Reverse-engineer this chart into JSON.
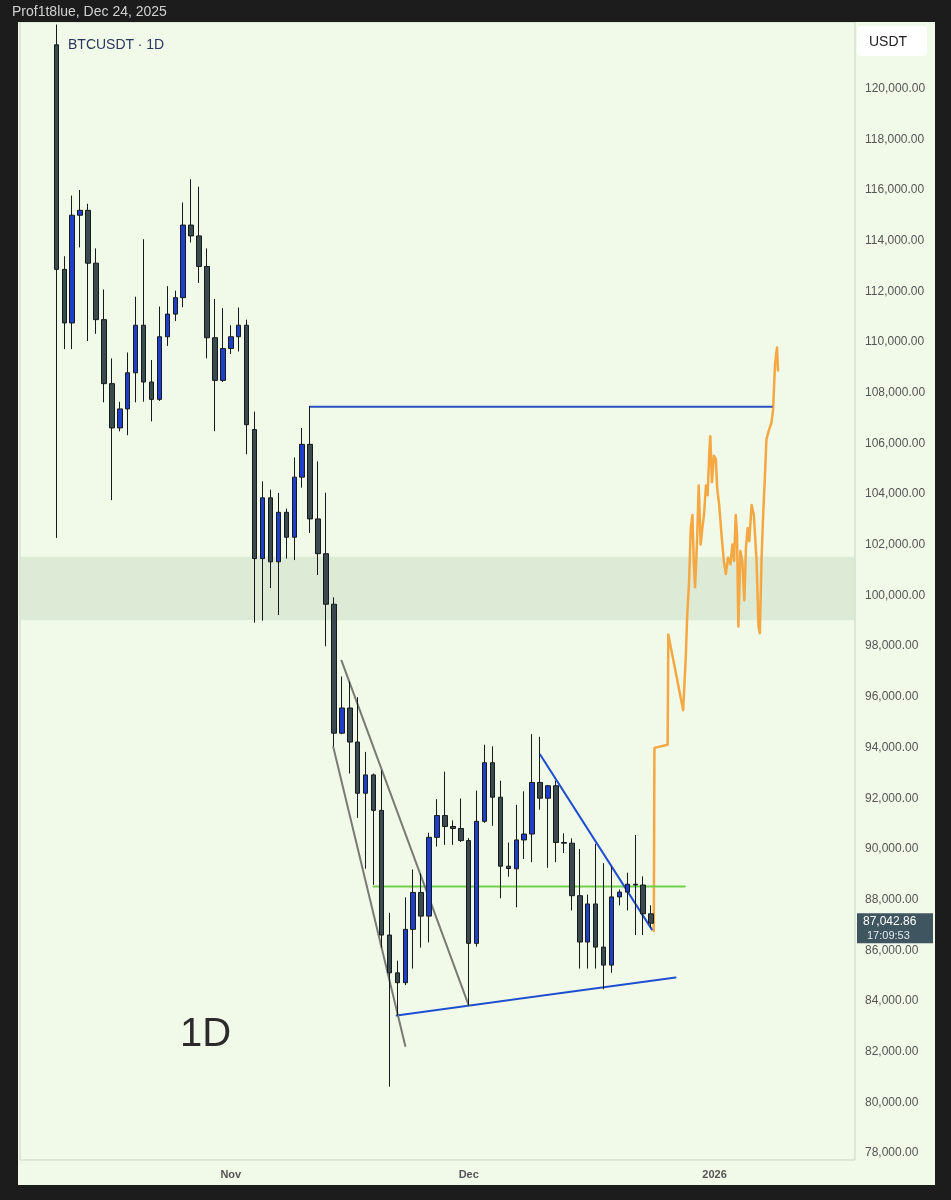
{
  "chart_data": {
    "type": "candlestick",
    "title": "BTCUSDT · 1D",
    "subtitle": "Prof1t8lue, Dec 24, 2025",
    "ylabel": "USDT",
    "annotations": [
      "1D",
      "87,042.86",
      "17:09:53"
    ],
    "xlim": [
      "2025-10-05T10:00",
      "2026-01-18T17:00"
    ],
    "xticks": [
      {
        "value": "2025-11-01",
        "label": "Nov"
      },
      {
        "value": "2025-12-01",
        "label": "Dec"
      },
      {
        "value": "2026-01-01",
        "label": "2026"
      }
    ],
    "ylim": [
      77700,
      122600
    ],
    "yticks": [
      {
        "value": 78000,
        "label": "78,000.00"
      },
      {
        "value": 80000,
        "label": "80,000.00"
      },
      {
        "value": 82000,
        "label": "82,000.00"
      },
      {
        "value": 84000,
        "label": "84,000.00"
      },
      {
        "value": 86000,
        "label": "86,000.00"
      },
      {
        "value": 88000,
        "label": "88,000.00"
      },
      {
        "value": 90000,
        "label": "90,000.00"
      },
      {
        "value": 92000,
        "label": "92,000.00"
      },
      {
        "value": 94000,
        "label": "94,000.00"
      },
      {
        "value": 96000,
        "label": "96,000.00"
      },
      {
        "value": 98000,
        "label": "98,000.00"
      },
      {
        "value": 100000,
        "label": "100,000.00"
      },
      {
        "value": 102000,
        "label": "102,000.00"
      },
      {
        "value": 104000,
        "label": "104,000.00"
      },
      {
        "value": 106000,
        "label": "106,000.00"
      },
      {
        "value": 108000,
        "label": "108,000.00"
      },
      {
        "value": 110000,
        "label": "110,000.00"
      },
      {
        "value": 112000,
        "label": "112,000.00"
      },
      {
        "value": 114000,
        "label": "114,000.00"
      },
      {
        "value": 116000,
        "label": "116,000.00"
      },
      {
        "value": 118000,
        "label": "118,000.00"
      },
      {
        "value": 120000,
        "label": "120,000.00"
      }
    ],
    "bands": [
      {
        "axis": "y",
        "from": 99000,
        "to": 101500,
        "color": "#d8e6d0"
      }
    ],
    "series": [
      {
        "type": "candlestick",
        "x": [
          "2025-10-10",
          "2025-10-11",
          "2025-10-12",
          "2025-10-13",
          "2025-10-14",
          "2025-10-15",
          "2025-10-16",
          "2025-10-17",
          "2025-10-18",
          "2025-10-19",
          "2025-10-20",
          "2025-10-21",
          "2025-10-22",
          "2025-10-23",
          "2025-10-24",
          "2025-10-25",
          "2025-10-26",
          "2025-10-27",
          "2025-10-28",
          "2025-10-29",
          "2025-10-30",
          "2025-10-31",
          "2025-11-01",
          "2025-11-02",
          "2025-11-03",
          "2025-11-04",
          "2025-11-05",
          "2025-11-06",
          "2025-11-07",
          "2025-11-08",
          "2025-11-09",
          "2025-11-10",
          "2025-11-11",
          "2025-11-12",
          "2025-11-13",
          "2025-11-14",
          "2025-11-15",
          "2025-11-16",
          "2025-11-17",
          "2025-11-18",
          "2025-11-19",
          "2025-11-20",
          "2025-11-21",
          "2025-11-22",
          "2025-11-23",
          "2025-11-24",
          "2025-11-25",
          "2025-11-26",
          "2025-11-27",
          "2025-11-28",
          "2025-11-29",
          "2025-11-30",
          "2025-12-01",
          "2025-12-02",
          "2025-12-03",
          "2025-12-04",
          "2025-12-05",
          "2025-12-06",
          "2025-12-07",
          "2025-12-08",
          "2025-12-09",
          "2025-12-10",
          "2025-12-11",
          "2025-12-12",
          "2025-12-13",
          "2025-12-14",
          "2025-12-15",
          "2025-12-16",
          "2025-12-17",
          "2025-12-18",
          "2025-12-19",
          "2025-12-20",
          "2025-12-21",
          "2025-12-22",
          "2025-12-23",
          "2025-12-24"
        ],
        "ohlc": [
          [
            121700,
            122500,
            102245,
            112840
          ],
          [
            112840,
            113356,
            109693,
            110726
          ],
          [
            110726,
            115753,
            109693,
            114976
          ],
          [
            114976,
            115972,
            113706,
            115170
          ],
          [
            115170,
            115427,
            110015,
            113084
          ],
          [
            113084,
            113667,
            110298,
            110857
          ],
          [
            110857,
            112047,
            107594,
            108332
          ],
          [
            108332,
            109328,
            103733,
            106584
          ],
          [
            106584,
            107618,
            106450,
            107334
          ],
          [
            107334,
            109561,
            106298,
            108760
          ],
          [
            108760,
            111763,
            107594,
            110637
          ],
          [
            110637,
            114029,
            107618,
            108396
          ],
          [
            108396,
            109263,
            106841,
            107710
          ],
          [
            107710,
            111374,
            107650,
            110182
          ],
          [
            110182,
            112177,
            109820,
            111076
          ],
          [
            111076,
            112000,
            110800,
            111724
          ],
          [
            111724,
            115481,
            111347,
            114588
          ],
          [
            114588,
            116398,
            113900,
            114160
          ],
          [
            114160,
            116103,
            112307,
            112956
          ],
          [
            112956,
            113667,
            109328,
            110143
          ],
          [
            110143,
            111673,
            106454,
            108460
          ],
          [
            108460,
            111309,
            108400,
            109717
          ],
          [
            109717,
            110637,
            109500,
            110182
          ],
          [
            110182,
            111335,
            109600,
            110637
          ],
          [
            110637,
            110857,
            105544,
            106712
          ],
          [
            106518,
            107229,
            98903,
            101428
          ],
          [
            101428,
            104473,
            98980,
            103826
          ],
          [
            103826,
            104148,
            100263,
            101300
          ],
          [
            101300,
            104020,
            99200,
            103255
          ],
          [
            103255,
            103400,
            101428,
            102271
          ],
          [
            102271,
            105419,
            101370,
            104642
          ],
          [
            104642,
            106584,
            104226,
            105936
          ],
          [
            105936,
            107451,
            102440,
            102994
          ],
          [
            102994,
            105263,
            100780,
            101622
          ],
          [
            101622,
            104030,
            97969,
            99628
          ],
          [
            99628,
            99900,
            94020,
            94540
          ],
          [
            94540,
            96777,
            94500,
            95534
          ],
          [
            95534,
            96570,
            92947,
            94190
          ],
          [
            94190,
            95962,
            91199,
            92170
          ],
          [
            92170,
            93801,
            89190,
            92894
          ],
          [
            92894,
            92950,
            88555,
            91494
          ],
          [
            91494,
            93075,
            86081,
            86575
          ],
          [
            86575,
            87453,
            80593,
            85084
          ],
          [
            85084,
            85564,
            83400,
            84696
          ],
          [
            84696,
            88063,
            84600,
            86800
          ],
          [
            86800,
            89164,
            85253,
            88257
          ],
          [
            88257,
            89000,
            86081,
            87323
          ],
          [
            87323,
            90612,
            86287,
            90431
          ],
          [
            90431,
            91938,
            90069,
            91290
          ],
          [
            91290,
            93024,
            90133,
            90859
          ],
          [
            90859,
            91100,
            90133,
            90780
          ],
          [
            90780,
            91963,
            90250,
            90302
          ],
          [
            90302,
            90400,
            83790,
            86248
          ],
          [
            86248,
            92273,
            86120,
            91063
          ],
          [
            91063,
            94087,
            91000,
            93375
          ],
          [
            93375,
            94022,
            90885,
            92014
          ],
          [
            92014,
            92662,
            88025,
            89293
          ],
          [
            89293,
            90227,
            88878,
            89200
          ],
          [
            89190,
            91711,
            87673,
            90328
          ],
          [
            90328,
            92247,
            89579,
            90561
          ],
          [
            90561,
            94503,
            89450,
            92597
          ],
          [
            92597,
            94400,
            91520,
            91975
          ],
          [
            91975,
            92500,
            89228,
            92466
          ],
          [
            92466,
            92662,
            89450,
            90227
          ],
          [
            90227,
            90589,
            89811,
            90200
          ],
          [
            90200,
            90393,
            87545,
            88128
          ],
          [
            88128,
            89966,
            85253,
            86300
          ],
          [
            86300,
            88171,
            85253,
            87802
          ],
          [
            87802,
            90175,
            85253,
            86100
          ],
          [
            86100,
            89411,
            84437,
            85390
          ],
          [
            85390,
            89280,
            85084,
            88080
          ],
          [
            88080,
            88374,
            87749,
            88270
          ],
          [
            88270,
            89036,
            87545,
            88581
          ],
          [
            88581,
            90522,
            86575,
            88550
          ],
          [
            88550,
            88891,
            86575,
            87414
          ],
          [
            87414,
            87749,
            86867,
            87042.86
          ]
        ],
        "colors": [
          "#3b4a4e",
          "#3b4a4e",
          "#1f3fc9",
          "#1f3fc9",
          "#3b4a4e",
          "#3b4a4e",
          "#3b4a4e",
          "#3b4a4e",
          "#1f3fc9",
          "#1f3fc9",
          "#1f3fc9",
          "#3b4a4e",
          "#3b4a4e",
          "#1f3fc9",
          "#1f3fc9",
          "#1f3fc9",
          "#1f3fc9",
          "#3b4a4e",
          "#3b4a4e",
          "#3b4a4e",
          "#3b4a4e",
          "#1f3fc9",
          "#1f3fc9",
          "#1f3fc9",
          "#3b4a4e",
          "#3b4a4e",
          "#1f3fc9",
          "#3b4a4e",
          "#1f3fc9",
          "#3b4a4e",
          "#1f3fc9",
          "#1f3fc9",
          "#3b4a4e",
          "#3b4a4e",
          "#3b4a4e",
          "#3b4a4e",
          "#1f3fc9",
          "#3b4a4e",
          "#3b4a4e",
          "#1f3fc9",
          "#3b4a4e",
          "#3b4a4e",
          "#3b4a4e",
          "#3b4a4e",
          "#1f3fc9",
          "#1f3fc9",
          "#3b4a4e",
          "#1f3fc9",
          "#1f3fc9",
          "#3b4a4e",
          "#3b4a4e",
          "#3b4a4e",
          "#3b4a4e",
          "#1f3fc9",
          "#1f3fc9",
          "#3b4a4e",
          "#3b4a4e",
          "#3b4a4e",
          "#1f3fc9",
          "#1f3fc9",
          "#1f3fc9",
          "#3b4a4e",
          "#1f3fc9",
          "#3b4a4e",
          "#3b4a4e",
          "#3b4a4e",
          "#3b4a4e",
          "#1f3fc9",
          "#3b4a4e",
          "#3b4a4e",
          "#1f3fc9",
          "#1f3fc9",
          "#1f3fc9",
          "#3b4a4e",
          "#3b4a4e",
          "#3b4a4e"
        ]
      },
      {
        "type": "line",
        "color": "#f5a742",
        "x": [
          "2025-12-24T08:00",
          "2025-12-24T10:00",
          "2025-12-26T02:00",
          "2025-12-26T04:00",
          "2025-12-28T01:00",
          "2025-12-28T09:00",
          "2025-12-28T13:00",
          "2025-12-28T19:00",
          "2025-12-29T00:00",
          "2025-12-29T05:00",
          "2025-12-29T09:00",
          "2025-12-29T13:00",
          "2025-12-29T19:00",
          "2025-12-30T00:00",
          "2025-12-30T06:00",
          "2025-12-30T11:00",
          "2025-12-30T16:00",
          "2025-12-30T22:00",
          "2025-12-31T03:00",
          "2025-12-31T08:00",
          "2025-12-31T11:00",
          "2025-12-31T16:00",
          "2025-12-31T22:00",
          "2026-01-01T04:00",
          "2026-01-01T08:00",
          "2026-01-01T14:00",
          "2026-01-01T21:00",
          "2026-01-02T04:00",
          "2026-01-02T10:00",
          "2026-01-02T17:00",
          "2026-01-03T00:00",
          "2026-01-03T06:00",
          "2026-01-03T11:00",
          "2026-01-03T16:00",
          "2026-01-03T20:00",
          "2026-01-04T00:00",
          "2026-01-04T06:00",
          "2026-01-04T12:00",
          "2026-01-04T18:00",
          "2026-01-04T23:00",
          "2026-01-05T04:00",
          "2026-01-05T09:00",
          "2026-01-05T16:00",
          "2026-01-05T23:00",
          "2026-01-06T07:00",
          "2026-01-06T13:00",
          "2026-01-06T17:00",
          "2026-01-06T22:00",
          "2026-01-07T03:00",
          "2026-01-07T08:00",
          "2026-01-07T13:00",
          "2026-01-07T21:00",
          "2026-01-08T04:00",
          "2026-01-08T09:00",
          "2026-01-08T15:00",
          "2026-01-08T21:00",
          "2026-01-09T00:00"
        ],
        "values": [
          86740,
          93960,
          94085,
          98437,
          95445,
          97582,
          99136,
          100562,
          102633,
          103150,
          101337,
          100301,
          102115,
          104316,
          101985,
          102633,
          103150,
          104316,
          103927,
          105612,
          106259,
          104446,
          105482,
          105352,
          104187,
          103539,
          102374,
          101337,
          100819,
          101467,
          101207,
          101985,
          101337,
          103150,
          102374,
          98747,
          101727,
          101337,
          99784,
          101856,
          102633,
          102115,
          103539,
          103150,
          101337,
          98747,
          98487,
          101337,
          103150,
          104575,
          106130,
          106518,
          106778,
          107296,
          109109,
          109756,
          108850
        ]
      },
      {
        "type": "line",
        "color": "#2a4fc4",
        "x": [
          "2025-11-11",
          "2026-01-08T05:00"
        ],
        "values": [
          107420,
          107420
        ]
      },
      {
        "type": "line",
        "color": "#6fd14a",
        "x": [
          "2025-11-19",
          "2025-12-28T06:00"
        ],
        "values": [
          88490,
          88490
        ]
      },
      {
        "type": "line",
        "color": "#1f4fd0",
        "x": [
          "2025-11-21T22:00",
          "2025-12-27T02:00"
        ],
        "values": [
          83400,
          84900
        ]
      },
      {
        "type": "line",
        "color": "#1f4fd0",
        "x": [
          "2025-12-10",
          "2025-12-24T02:00"
        ],
        "values": [
          93700,
          86800
        ]
      },
      {
        "type": "line",
        "color": "#777b74",
        "x": [
          "2025-11-13T22:00",
          "2025-11-23"
        ],
        "values": [
          94000,
          82200
        ]
      },
      {
        "type": "line",
        "color": "#777b74",
        "x": [
          "2025-11-14T23:00",
          "2025-12-01"
        ],
        "values": [
          97400,
          83800
        ]
      }
    ]
  }
}
